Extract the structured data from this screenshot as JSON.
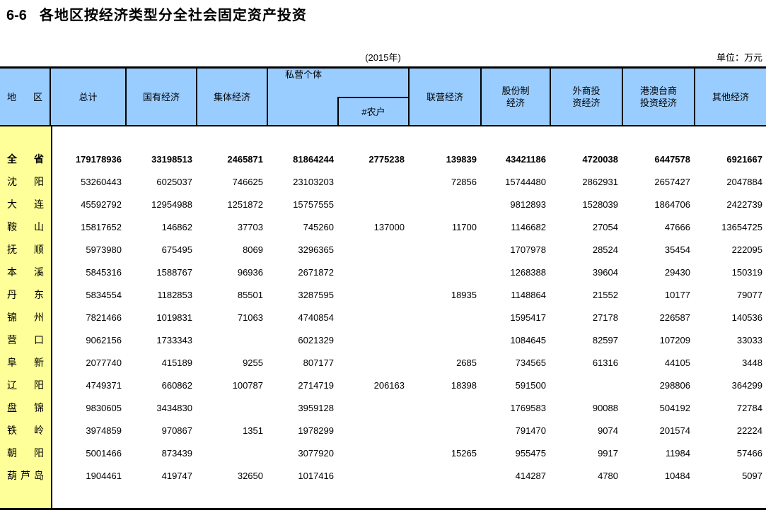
{
  "page": {
    "table_no": "6-6",
    "title": "各地区按经济类型分全社会固定资产投资",
    "year_note": "(2015年)",
    "unit_note": "单位：万元"
  },
  "colors": {
    "header_bg": "#99CCFF",
    "region_col_bg": "#FFFF99",
    "border": "#000000"
  },
  "table": {
    "header": {
      "region": "地区",
      "total": "总计",
      "state": "国有经济",
      "collective": "集体经济",
      "private": "私营个体",
      "farmers": "#农户",
      "joint": "联营经济",
      "share_l1": "股份制",
      "share_l2": "经济",
      "foreign_l1": "外商投",
      "foreign_l2": "资经济",
      "hmt_l1": "港澳台商",
      "hmt_l2": "投资经济",
      "other": "其他经济"
    },
    "rows": [
      {
        "region": "全省",
        "emphasis": true,
        "values": [
          "179178936",
          "33198513",
          "2465871",
          "81864244",
          "2775238",
          "139839",
          "43421186",
          "4720038",
          "6447578",
          "6921667"
        ]
      },
      {
        "region": "沈阳",
        "values": [
          "53260443",
          "6025037",
          "746625",
          "23103203",
          "",
          "72856",
          "15744480",
          "2862931",
          "2657427",
          "2047884"
        ]
      },
      {
        "region": "大连",
        "values": [
          "45592792",
          "12954988",
          "1251872",
          "15757555",
          "",
          "",
          "9812893",
          "1528039",
          "1864706",
          "2422739"
        ]
      },
      {
        "region": "鞍山",
        "values": [
          "15817652",
          "146862",
          "37703",
          "745260",
          "137000",
          "11700",
          "1146682",
          "27054",
          "47666",
          "13654725"
        ]
      },
      {
        "region": "抚顺",
        "values": [
          "5973980",
          "675495",
          "8069",
          "3296365",
          "",
          "",
          "1707978",
          "28524",
          "35454",
          "222095"
        ]
      },
      {
        "region": "本溪",
        "values": [
          "5845316",
          "1588767",
          "96936",
          "2671872",
          "",
          "",
          "1268388",
          "39604",
          "29430",
          "150319"
        ]
      },
      {
        "region": "丹东",
        "values": [
          "5834554",
          "1182853",
          "85501",
          "3287595",
          "",
          "18935",
          "1148864",
          "21552",
          "10177",
          "79077"
        ]
      },
      {
        "region": "锦州",
        "values": [
          "7821466",
          "1019831",
          "71063",
          "4740854",
          "",
          "",
          "1595417",
          "27178",
          "226587",
          "140536"
        ]
      },
      {
        "region": "营口",
        "values": [
          "9062156",
          "1733343",
          "",
          "6021329",
          "",
          "",
          "1084645",
          "82597",
          "107209",
          "33033"
        ]
      },
      {
        "region": "阜新",
        "values": [
          "2077740",
          "415189",
          "9255",
          "807177",
          "",
          "2685",
          "734565",
          "61316",
          "44105",
          "3448"
        ]
      },
      {
        "region": "辽阳",
        "values": [
          "4749371",
          "660862",
          "100787",
          "2714719",
          "206163",
          "18398",
          "591500",
          "",
          "298806",
          "364299"
        ]
      },
      {
        "region": "盘锦",
        "values": [
          "9830605",
          "3434830",
          "",
          "3959128",
          "",
          "",
          "1769583",
          "90088",
          "504192",
          "72784"
        ]
      },
      {
        "region": "铁岭",
        "values": [
          "3974859",
          "970867",
          "1351",
          "1978299",
          "",
          "",
          "791470",
          "9074",
          "201574",
          "22224"
        ]
      },
      {
        "region": "朝阳",
        "values": [
          "5001466",
          "873439",
          "",
          "3077920",
          "",
          "15265",
          "955475",
          "9917",
          "11984",
          "57466"
        ]
      },
      {
        "region": "葫芦岛",
        "values": [
          "1904461",
          "419747",
          "32650",
          "1017416",
          "",
          "",
          "414287",
          "4780",
          "10484",
          "5097"
        ]
      }
    ]
  }
}
